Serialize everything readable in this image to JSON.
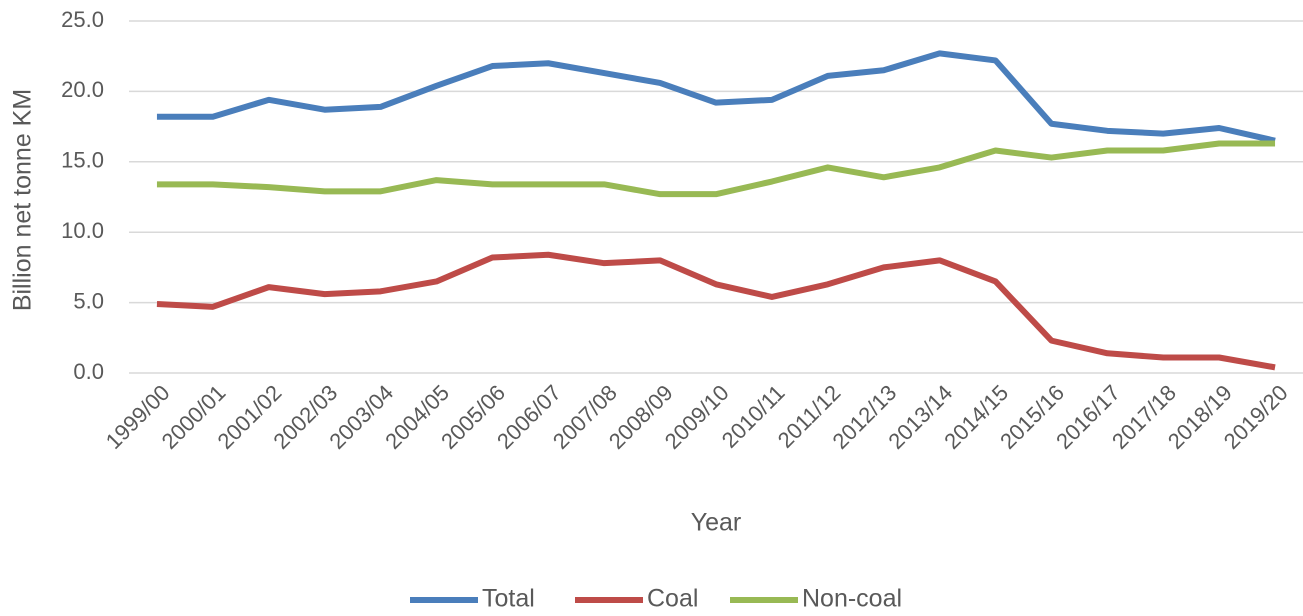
{
  "chart_data": {
    "type": "line",
    "xlabel": "Year",
    "ylabel": "Billion net tonne KM",
    "categories": [
      "1999/00",
      "2000/01",
      "2001/02",
      "2002/03",
      "2003/04",
      "2004/05",
      "2005/06",
      "2006/07",
      "2007/08",
      "2008/09",
      "2009/10",
      "2010/11",
      "2011/12",
      "2012/13",
      "2013/14",
      "2014/15",
      "2015/16",
      "2016/17",
      "2017/18",
      "2018/19",
      "2019/20"
    ],
    "series": [
      {
        "name": "Total",
        "color": "#4a7ebb",
        "values": [
          18.2,
          18.2,
          19.4,
          18.7,
          18.9,
          20.4,
          21.8,
          22.0,
          21.3,
          20.6,
          19.2,
          19.4,
          21.1,
          21.5,
          22.7,
          22.2,
          17.7,
          17.2,
          17.0,
          17.4,
          16.5
        ]
      },
      {
        "name": "Coal",
        "color": "#be4b48",
        "values": [
          4.9,
          4.7,
          6.1,
          5.6,
          5.8,
          6.5,
          8.2,
          8.4,
          7.8,
          8.0,
          6.3,
          5.4,
          6.3,
          7.5,
          8.0,
          6.5,
          2.3,
          1.4,
          1.1,
          1.1,
          0.4
        ]
      },
      {
        "name": "Non-coal",
        "color": "#98b954",
        "values": [
          13.4,
          13.4,
          13.2,
          12.9,
          12.9,
          13.7,
          13.4,
          13.4,
          13.4,
          12.7,
          12.7,
          13.6,
          14.6,
          13.9,
          14.6,
          15.8,
          15.3,
          15.8,
          15.8,
          16.3,
          16.3
        ]
      }
    ],
    "ylim": [
      0,
      25
    ],
    "yticks": [
      {
        "value": 0,
        "label": "0.0"
      },
      {
        "value": 5,
        "label": "5.0"
      },
      {
        "value": 10,
        "label": "10.0"
      },
      {
        "value": 15,
        "label": "15.0"
      },
      {
        "value": 20,
        "label": "20.0"
      },
      {
        "value": 25,
        "label": "25.0"
      }
    ],
    "grid": true,
    "legend": "bottom"
  }
}
